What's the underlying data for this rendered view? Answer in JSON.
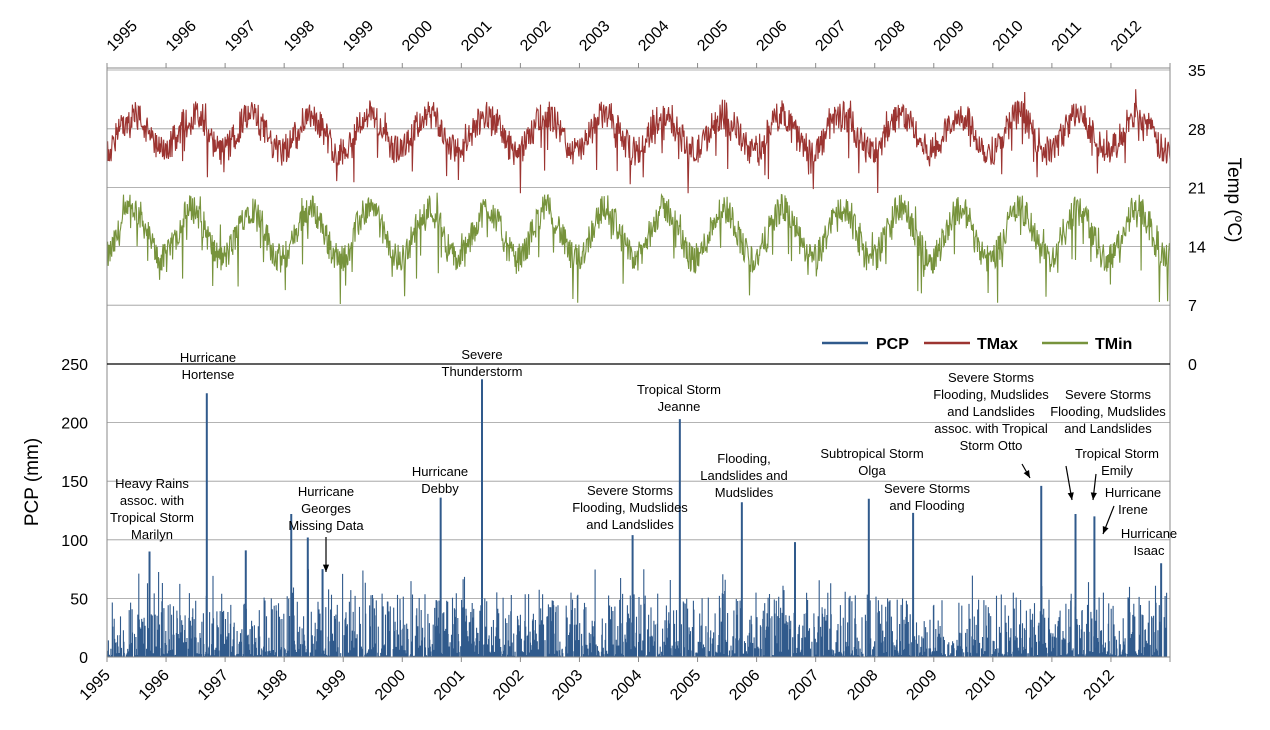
{
  "chart_data": {
    "type": "line",
    "title": "",
    "years": [
      "1995",
      "1996",
      "1997",
      "1998",
      "1999",
      "2000",
      "2001",
      "2002",
      "2003",
      "2004",
      "2005",
      "2006",
      "2007",
      "2008",
      "2009",
      "2010",
      "2011",
      "2012"
    ],
    "xlim": [
      1995,
      2013
    ],
    "temperature": {
      "ylabel": "Temp (°C)",
      "ylabel_prefix": "Temp (",
      "ylabel_degree": "o",
      "ylabel_suffix": "C)",
      "ylim": [
        0,
        35
      ],
      "yticks": [
        "0",
        "7",
        "14",
        "21",
        "28",
        "35"
      ],
      "series": [
        {
          "name": "TMax",
          "color": "#9c3431",
          "seasonal_mean": 27.5,
          "amplitude": 2.2,
          "min_value": 18.5,
          "max_value": 33.5
        },
        {
          "name": "TMin",
          "color": "#77933c",
          "seasonal_mean": 15.5,
          "amplitude": 3.0,
          "min_value": 4,
          "max_value": 24
        }
      ]
    },
    "precipitation": {
      "name": "PCP",
      "color": "#305a8c",
      "ylabel": "PCP (mm)",
      "ylim": [
        0,
        250
      ],
      "yticks": [
        "0",
        "50",
        "100",
        "150",
        "200",
        "250"
      ],
      "unit": "mm",
      "spikes": [
        {
          "year": 1995.72,
          "value": 90
        },
        {
          "year": 1996.69,
          "value": 225
        },
        {
          "year": 1997.35,
          "value": 91
        },
        {
          "year": 1998.12,
          "value": 122
        },
        {
          "year": 1998.4,
          "value": 102
        },
        {
          "year": 1998.65,
          "value": 75
        },
        {
          "year": 2000.65,
          "value": 136
        },
        {
          "year": 2001.35,
          "value": 237
        },
        {
          "year": 2003.9,
          "value": 104
        },
        {
          "year": 2004.7,
          "value": 203
        },
        {
          "year": 2005.75,
          "value": 132
        },
        {
          "year": 2006.65,
          "value": 98
        },
        {
          "year": 2007.9,
          "value": 135
        },
        {
          "year": 2008.65,
          "value": 123
        },
        {
          "year": 2010.82,
          "value": 146
        },
        {
          "year": 2011.4,
          "value": 122
        },
        {
          "year": 2011.72,
          "value": 120
        },
        {
          "year": 2012.85,
          "value": 80
        }
      ]
    },
    "legend": [
      {
        "label": "PCP",
        "color": "#305a8c"
      },
      {
        "label": "TMax",
        "color": "#9c3431"
      },
      {
        "label": "TMin",
        "color": "#77933c"
      }
    ],
    "legend_placement": "middle-right",
    "annotations": [
      {
        "lines": [
          "Heavy Rains",
          "assoc.  with",
          "Tropical Storm",
          "Marilyn"
        ]
      },
      {
        "lines": [
          "Hurricane",
          "Hortense"
        ]
      },
      {
        "lines": [
          "Hurricane",
          "Georges",
          "Missing Data"
        ]
      },
      {
        "lines": [
          "Hurricane",
          "Debby"
        ]
      },
      {
        "lines": [
          "Severe",
          "Thunderstorm"
        ]
      },
      {
        "lines": [
          "Severe Storms",
          "Flooding, Mudslides",
          "and Landslides"
        ]
      },
      {
        "lines": [
          "Tropical Storm",
          "Jeanne"
        ]
      },
      {
        "lines": [
          "Flooding,",
          "Landslides and",
          "Mudslides"
        ]
      },
      {
        "lines": [
          "Subtropical Storm",
          "Olga"
        ]
      },
      {
        "lines": [
          "Severe Storms",
          "and Flooding"
        ]
      },
      {
        "lines": [
          "Severe Storms",
          "Flooding, Mudslides",
          "and Landslides",
          "assoc. with Tropical",
          "Storm Otto"
        ]
      },
      {
        "lines": [
          "Severe Storms",
          "Flooding, Mudslides",
          "and Landslides"
        ]
      },
      {
        "lines": [
          "Tropical Storm",
          "Emily"
        ]
      },
      {
        "lines": [
          "Hurricane",
          "Irene"
        ]
      },
      {
        "lines": [
          "Hurricane",
          "Isaac"
        ]
      }
    ]
  }
}
